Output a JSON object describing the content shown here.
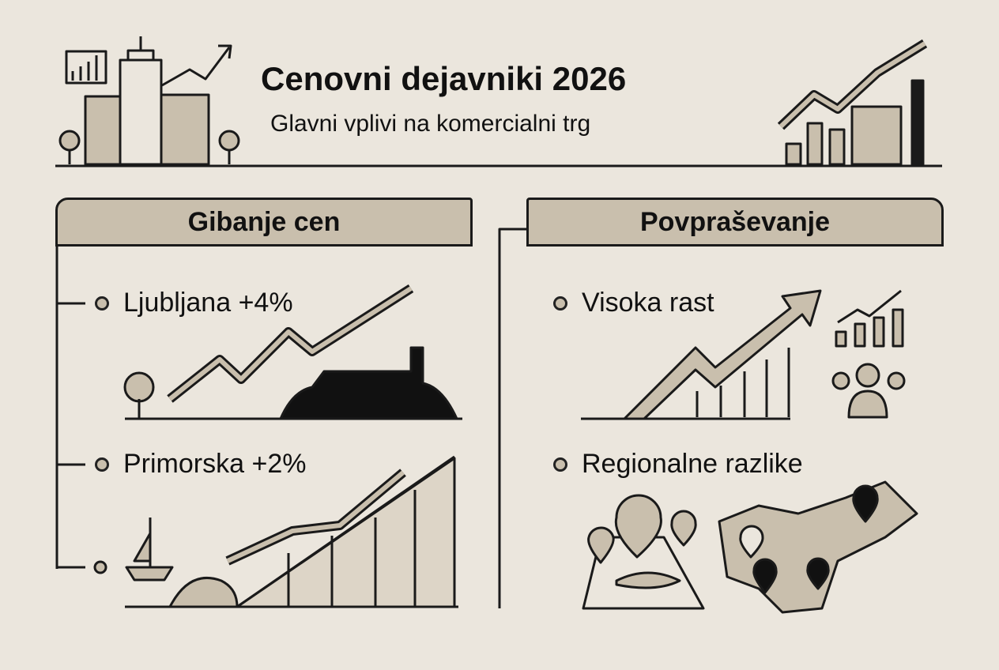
{
  "header": {
    "title": "Cenovni dejavniki 2026",
    "subtitle": "Glavni vplivi na komercialni trg"
  },
  "panels": [
    {
      "heading": "Gibanje cen",
      "items": [
        {
          "label": "Ljubljana +4%",
          "icon": "castle-hill-trend-icon"
        },
        {
          "label": "Primorska +2%",
          "icon": "coast-sailboat-trend-icon"
        }
      ]
    },
    {
      "heading": "Povpraševanje",
      "items": [
        {
          "label": "Visoka rast",
          "icon": "rising-arrow-people-icon"
        },
        {
          "label": "Regionalne razlike",
          "icon": "slovenia-map-pins-icon"
        }
      ]
    }
  ],
  "colors": {
    "background": "#ebe6dd",
    "accent_fill": "#c9bfad",
    "ink": "#1a1a1a"
  }
}
